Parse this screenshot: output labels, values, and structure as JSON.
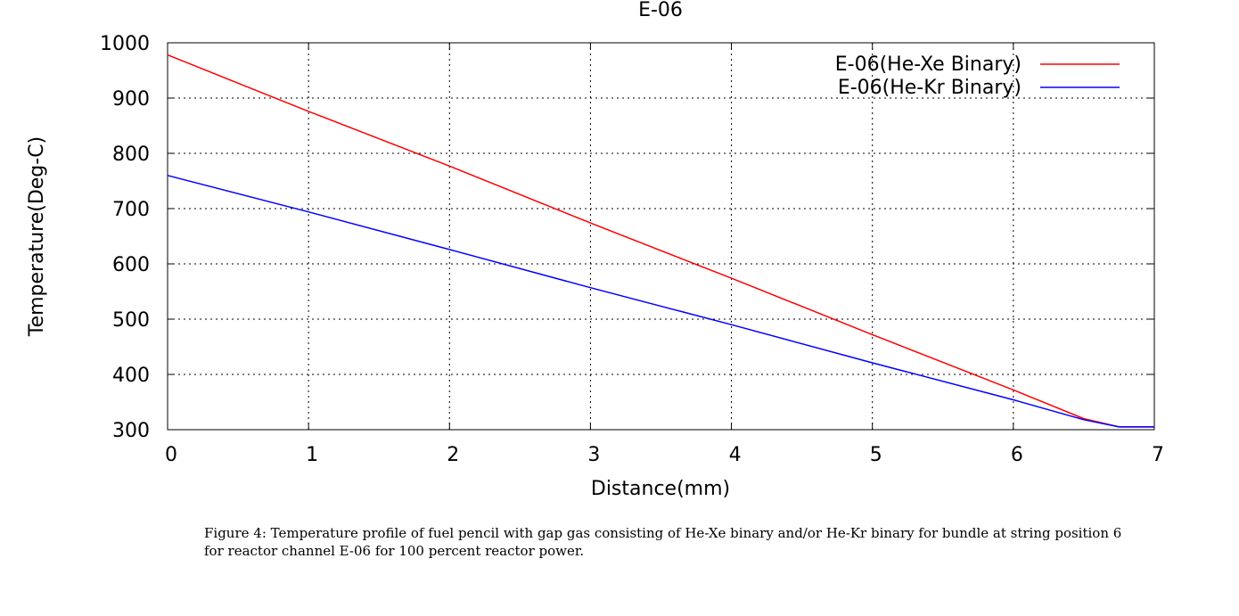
{
  "chart_data": {
    "type": "line",
    "title": "E-06",
    "xlabel": "Distance(mm)",
    "ylabel": "Temperature(Deg-C)",
    "xlim": [
      0,
      7
    ],
    "ylim": [
      300,
      1000
    ],
    "xticks": [
      "0",
      "1",
      "2",
      "3",
      "4",
      "5",
      "6",
      "7"
    ],
    "yticks": [
      "300",
      "400",
      "500",
      "600",
      "700",
      "800",
      "900",
      "1000"
    ],
    "grid": true,
    "legend_position": "top-right",
    "series": [
      {
        "name": "E-06(He-Xe Binary)",
        "color": "#ff0000",
        "x": [
          0,
          1,
          2,
          3,
          4,
          5,
          6,
          6.5,
          6.75,
          7
        ],
        "y": [
          978,
          876,
          777,
          674,
          574,
          472,
          372,
          320,
          305,
          305
        ]
      },
      {
        "name": "E-06(He-Kr Binary)",
        "color": "#0000ff",
        "x": [
          0,
          1,
          2,
          3,
          4,
          5,
          6,
          6.5,
          6.75,
          7
        ],
        "y": [
          760,
          694,
          626,
          557,
          490,
          421,
          354,
          318,
          305,
          305
        ]
      }
    ]
  },
  "caption": "Figure 4: Temperature profile of fuel pencil with gap gas consisting of He-Xe binary and/or He-Kr binary for bundle at string position 6 for reactor channel E-06 for 100 percent reactor power."
}
